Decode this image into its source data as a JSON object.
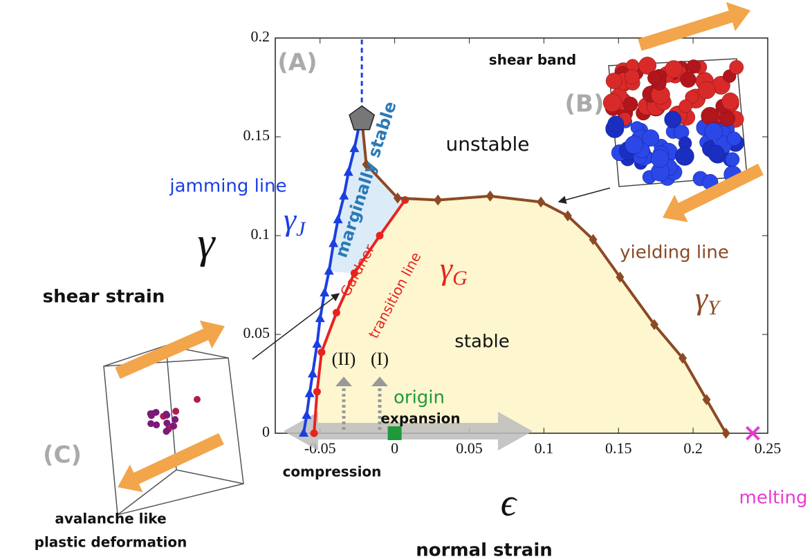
{
  "chart_data": {
    "type": "line",
    "x_label": "ϵ",
    "y_label": "γ",
    "xlim": [
      -0.08,
      0.25
    ],
    "ylim": [
      0,
      0.2
    ],
    "xticks": [
      -0.05,
      0,
      0.05,
      0.1,
      0.15,
      0.2,
      0.25
    ],
    "yticks": [
      0,
      0.05,
      0.1,
      0.15,
      0.2
    ],
    "series": [
      {
        "name": "jamming line",
        "color": "#1a3fe0",
        "marker": "triangle",
        "x": [
          -0.061,
          -0.059,
          -0.057,
          -0.055,
          -0.052,
          -0.05,
          -0.047,
          -0.044,
          -0.041,
          -0.038,
          -0.034,
          -0.031,
          -0.027,
          -0.024,
          -0.022
        ],
        "values": [
          0,
          0.009,
          0.02,
          0.03,
          0.045,
          0.058,
          0.071,
          0.082,
          0.096,
          0.108,
          0.12,
          0.132,
          0.144,
          0.155,
          0.159
        ]
      },
      {
        "color": "#e8231f",
        "marker": "circle",
        "x": [
          -0.054,
          -0.052,
          -0.049,
          -0.039,
          -0.027,
          -0.01,
          0.007
        ],
        "values": [
          0,
          0.021,
          0.041,
          0.061,
          0.081,
          0.1,
          0.118
        ]
      },
      {
        "name": "yielding line",
        "color": "#8b4a24",
        "marker": "diamond",
        "x": [
          -0.022,
          -0.019,
          0.002,
          0.029,
          0.064,
          0.098,
          0.116,
          0.133,
          0.151,
          0.174,
          0.193,
          0.209,
          0.222
        ],
        "values": [
          0.159,
          0.136,
          0.119,
          0.118,
          0.12,
          0.117,
          0.11,
          0.098,
          0.079,
          0.055,
          0.038,
          0.017,
          0
        ]
      },
      {
        "color": "#1a3fe0",
        "dash": true,
        "x": [
          -0.022,
          -0.022
        ],
        "values": [
          0.159,
          0.2
        ]
      }
    ],
    "points": [
      {
        "x": -0.022,
        "y": 0.159,
        "marker": "pentagon",
        "color": "#777777"
      },
      {
        "x": 0,
        "y": 0,
        "marker": "square",
        "color": "#1f9a3a"
      },
      {
        "x": 0.24,
        "y": 0,
        "marker": "cross",
        "color": "#e83ad0"
      }
    ],
    "symbols": [
      {
        "symbol": "γ",
        "sub": "J"
      },
      {
        "symbol": "γ",
        "sub": "G"
      },
      {
        "symbol": "γ",
        "sub": "Y"
      }
    ],
    "annotations": [
      "(A)",
      "shear band",
      "(B)",
      "unstable",
      "marginally stable",
      "jamming line",
      "Gardner",
      "transition line",
      "stable",
      "(II)",
      "(I)",
      "origin",
      "expansion",
      "compression",
      "melting",
      "yielding line",
      "shear strain",
      "normal strain",
      "avalanche like",
      "plastic deformation",
      "(C)"
    ]
  }
}
